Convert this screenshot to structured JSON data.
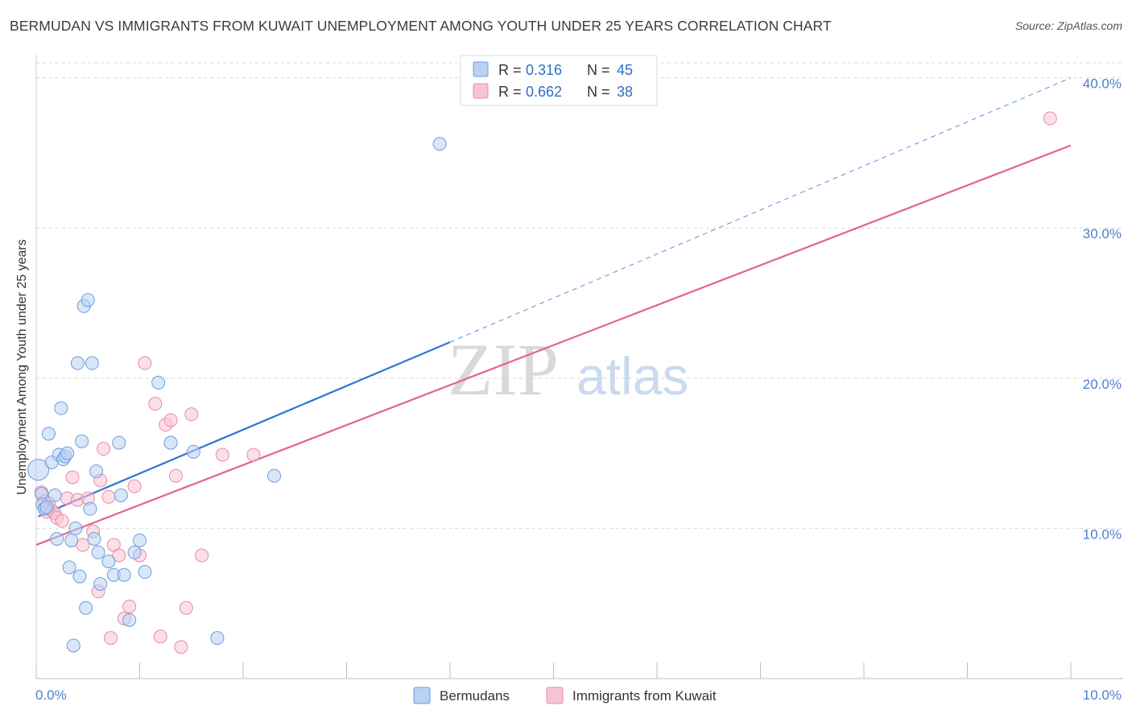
{
  "title": "BERMUDAN VS IMMIGRANTS FROM KUWAIT UNEMPLOYMENT AMONG YOUTH UNDER 25 YEARS CORRELATION CHART",
  "source": "Source: ZipAtlas.com",
  "watermark": {
    "zip": "ZIP",
    "atlas": "atlas"
  },
  "stats": {
    "r_label": "R =",
    "n_label": "N =",
    "series1": {
      "r": "0.316",
      "n": "45"
    },
    "series2": {
      "r": "0.662",
      "n": "38"
    }
  },
  "colors": {
    "blue_fill": "#b8d2f2",
    "blue_stroke": "#6d9ddf",
    "blue_line": "#2f78d0",
    "pink_fill": "#f7c4d4",
    "pink_stroke": "#e88aa8",
    "pink_line": "#e0648f",
    "grid": "#d9d9d9",
    "tick": "#4a80d0"
  },
  "chart_data": {
    "type": "scatter",
    "title": "BERMUDAN VS IMMIGRANTS FROM KUWAIT UNEMPLOYMENT AMONG YOUTH UNDER 25 YEARS CORRELATION CHART",
    "xlabel": "",
    "ylabel": "Unemployment Among Youth under 25 years",
    "xlim": [
      0,
      10
    ],
    "ylim": [
      0,
      41
    ],
    "x_tick_labels": [
      "0.0%",
      "10.0%"
    ],
    "y_ticks": [
      10,
      20,
      30,
      40
    ],
    "y_tick_labels": [
      "10.0%",
      "20.0%",
      "30.0%",
      "40.0%"
    ],
    "legend_position": "bottom-center",
    "series": [
      {
        "name": "Bermudans",
        "color": "#6d9ddf",
        "points": [
          [
            0.02,
            13.9
          ],
          [
            0.05,
            12.3
          ],
          [
            0.06,
            11.6
          ],
          [
            0.08,
            11.3
          ],
          [
            0.12,
            16.3
          ],
          [
            0.15,
            14.4
          ],
          [
            0.18,
            12.2
          ],
          [
            0.2,
            9.3
          ],
          [
            0.22,
            14.9
          ],
          [
            0.24,
            18.0
          ],
          [
            0.26,
            14.6
          ],
          [
            0.28,
            14.8
          ],
          [
            0.3,
            15.0
          ],
          [
            0.32,
            7.4
          ],
          [
            0.34,
            9.2
          ],
          [
            0.36,
            2.2
          ],
          [
            0.38,
            10.0
          ],
          [
            0.4,
            21.0
          ],
          [
            0.42,
            6.8
          ],
          [
            0.44,
            15.8
          ],
          [
            0.46,
            24.8
          ],
          [
            0.48,
            4.7
          ],
          [
            0.5,
            25.2
          ],
          [
            0.52,
            11.3
          ],
          [
            0.54,
            21.0
          ],
          [
            0.56,
            9.3
          ],
          [
            0.58,
            13.8
          ],
          [
            0.6,
            8.4
          ],
          [
            0.62,
            6.3
          ],
          [
            0.7,
            7.8
          ],
          [
            0.75,
            6.9
          ],
          [
            0.8,
            15.7
          ],
          [
            0.82,
            12.2
          ],
          [
            0.85,
            6.9
          ],
          [
            0.9,
            3.9
          ],
          [
            0.95,
            8.4
          ],
          [
            1.0,
            9.2
          ],
          [
            1.05,
            7.1
          ],
          [
            1.18,
            19.7
          ],
          [
            1.3,
            15.7
          ],
          [
            1.52,
            15.1
          ],
          [
            1.75,
            2.7
          ],
          [
            2.3,
            13.5
          ],
          [
            0.1,
            11.4
          ],
          [
            3.9,
            35.6
          ]
        ],
        "trend": {
          "x": [
            0.02,
            4.0
          ],
          "y": [
            10.8,
            22.4
          ],
          "extended_to": [
            10.0,
            40.0
          ]
        }
      },
      {
        "name": "Immigrants from Kuwait",
        "color": "#e88aa8",
        "points": [
          [
            0.05,
            12.4
          ],
          [
            0.08,
            11.8
          ],
          [
            0.1,
            11.1
          ],
          [
            0.12,
            11.7
          ],
          [
            0.15,
            11.2
          ],
          [
            0.18,
            11.0
          ],
          [
            0.2,
            10.7
          ],
          [
            0.25,
            10.5
          ],
          [
            0.3,
            12.0
          ],
          [
            0.35,
            13.4
          ],
          [
            0.4,
            11.9
          ],
          [
            0.45,
            8.9
          ],
          [
            0.5,
            12.0
          ],
          [
            0.55,
            9.8
          ],
          [
            0.6,
            5.8
          ],
          [
            0.62,
            13.2
          ],
          [
            0.65,
            15.3
          ],
          [
            0.7,
            12.1
          ],
          [
            0.72,
            2.7
          ],
          [
            0.75,
            8.9
          ],
          [
            0.8,
            8.2
          ],
          [
            0.85,
            4.0
          ],
          [
            0.9,
            4.8
          ],
          [
            0.95,
            12.8
          ],
          [
            1.0,
            8.2
          ],
          [
            1.05,
            21.0
          ],
          [
            1.15,
            18.3
          ],
          [
            1.2,
            2.8
          ],
          [
            1.25,
            16.9
          ],
          [
            1.3,
            17.2
          ],
          [
            1.35,
            13.5
          ],
          [
            1.4,
            2.1
          ],
          [
            1.45,
            4.7
          ],
          [
            1.5,
            17.6
          ],
          [
            1.6,
            8.2
          ],
          [
            1.8,
            14.9
          ],
          [
            2.1,
            14.9
          ],
          [
            9.8,
            37.3
          ]
        ],
        "trend": {
          "x": [
            0.0,
            10.0
          ],
          "y": [
            8.9,
            35.5
          ]
        }
      }
    ]
  }
}
